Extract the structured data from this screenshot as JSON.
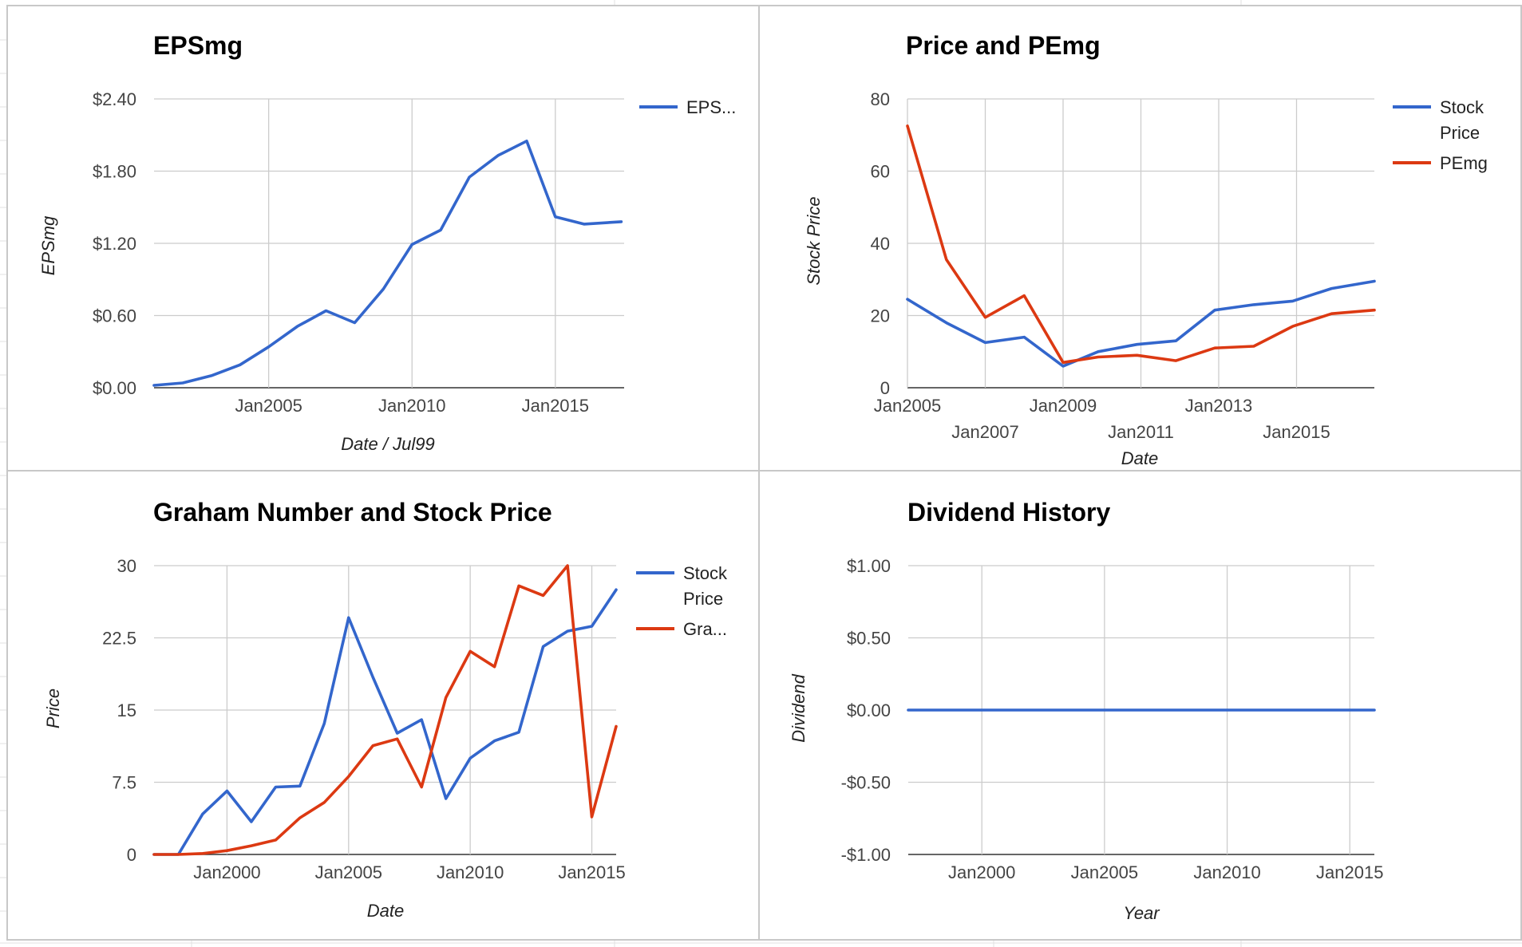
{
  "colors": {
    "blue": "#3366cc",
    "red": "#dc3912"
  },
  "chart_data": [
    {
      "type": "line",
      "title": "EPSmg",
      "xlabel": "Date / Jul99",
      "ylabel": "EPSmg",
      "xlim": [
        2001,
        2017.4
      ],
      "ylim": [
        0,
        2.4
      ],
      "yticks": [
        0,
        0.6,
        1.2,
        1.8,
        2.4
      ],
      "ytick_labels": [
        "$0.00",
        "$0.60",
        "$1.20",
        "$1.80",
        "$2.40"
      ],
      "xticks": [
        2005,
        2010,
        2015
      ],
      "xtick_labels": [
        "Jan2005",
        "Jan2010",
        "Jan2015"
      ],
      "legend": "right",
      "series": [
        {
          "name": "EPS...",
          "color": "#3366cc",
          "x": [
            2001,
            2002,
            2003,
            2004,
            2005,
            2006,
            2007,
            2008,
            2009,
            2010,
            2011,
            2012,
            2013,
            2014,
            2015,
            2016,
            2017.3
          ],
          "y": [
            0.02,
            0.04,
            0.1,
            0.19,
            0.34,
            0.51,
            0.64,
            0.54,
            0.82,
            1.19,
            1.31,
            1.75,
            1.93,
            2.05,
            1.42,
            1.36,
            1.38
          ]
        }
      ]
    },
    {
      "type": "line",
      "title": "Price and PEmg",
      "xlabel": "Date",
      "ylabel": "Stock Price",
      "xlim": [
        2005,
        2017
      ],
      "ylim": [
        0,
        80
      ],
      "yticks": [
        0,
        20,
        40,
        60,
        80
      ],
      "ytick_labels": [
        "0",
        "20",
        "40",
        "60",
        "80"
      ],
      "xticks_row1": [
        2005,
        2009,
        2013
      ],
      "xtick_labels_row1": [
        "Jan2005",
        "Jan2009",
        "Jan2013"
      ],
      "xticks_row2": [
        2007,
        2011,
        2015
      ],
      "xtick_labels_row2": [
        "Jan2007",
        "Jan2011",
        "Jan2015"
      ],
      "legend": "right",
      "series": [
        {
          "name": "Stock Price",
          "color": "#3366cc",
          "x": [
            2005,
            2006,
            2007,
            2008,
            2009,
            2009.9,
            2010.9,
            2011.9,
            2012.9,
            2013.9,
            2014.9,
            2015.9,
            2017
          ],
          "y": [
            24.5,
            18,
            12.5,
            14,
            6,
            10,
            12,
            13,
            21.5,
            23,
            24,
            27.5,
            29.5
          ]
        },
        {
          "name": "PEmg",
          "color": "#dc3912",
          "x": [
            2005,
            2006,
            2007,
            2008,
            2009,
            2009.9,
            2010.9,
            2011.9,
            2012.9,
            2013.9,
            2014.9,
            2015.9,
            2017
          ],
          "y": [
            72.5,
            35.5,
            19.5,
            25.5,
            7,
            8.5,
            9,
            7.5,
            11,
            11.5,
            17,
            20.5,
            21.5
          ]
        }
      ]
    },
    {
      "type": "line",
      "title": "Graham Number and Stock Price",
      "xlabel": "Date",
      "ylabel": "Price",
      "xlim": [
        1997,
        2016
      ],
      "ylim": [
        0,
        30
      ],
      "yticks": [
        0,
        7.5,
        15,
        22.5,
        30
      ],
      "ytick_labels": [
        "0",
        "7.5",
        "15",
        "22.5",
        "30"
      ],
      "xticks": [
        2000,
        2005,
        2010,
        2015
      ],
      "xtick_labels": [
        "Jan2000",
        "Jan2005",
        "Jan2010",
        "Jan2015"
      ],
      "legend": "right",
      "series": [
        {
          "name": "Stock Price",
          "color": "#3366cc",
          "x": [
            1997,
            1998,
            1999,
            2000,
            2001,
            2002,
            2003,
            2004,
            2005,
            2006,
            2007,
            2008,
            2009,
            2010,
            2011,
            2012,
            2013,
            2014,
            2015,
            2016
          ],
          "y": [
            0,
            0,
            4.2,
            6.6,
            3.4,
            7.0,
            7.1,
            13.6,
            24.6,
            18.4,
            12.6,
            14.0,
            5.8,
            10.0,
            11.8,
            12.7,
            21.6,
            23.2,
            23.7,
            27.5
          ]
        },
        {
          "name": "Gra...",
          "color": "#dc3912",
          "x": [
            1997,
            1998,
            1999,
            2000,
            2001,
            2002,
            2003,
            2004,
            2005,
            2006,
            2007,
            2008,
            2009,
            2010,
            2011,
            2012,
            2013,
            2014,
            2015,
            2016
          ],
          "y": [
            0,
            0,
            0.1,
            0.4,
            0.9,
            1.5,
            3.8,
            5.4,
            8.1,
            11.3,
            12.0,
            7.0,
            16.3,
            21.1,
            19.5,
            27.9,
            26.9,
            30.0,
            3.9,
            13.3
          ]
        }
      ]
    },
    {
      "type": "line",
      "title": "Dividend History",
      "xlabel": "Year",
      "ylabel": "Dividend",
      "xlim": [
        1997,
        2016
      ],
      "ylim": [
        -1,
        1
      ],
      "yticks": [
        -1,
        -0.5,
        0,
        0.5,
        1
      ],
      "ytick_labels": [
        "-$1.00",
        "-$0.50",
        "$0.00",
        "$0.50",
        "$1.00"
      ],
      "xticks": [
        2000,
        2005,
        2010,
        2015
      ],
      "xtick_labels": [
        "Jan2000",
        "Jan2005",
        "Jan2010",
        "Jan2015"
      ],
      "legend": "none",
      "series": [
        {
          "color": "#3366cc",
          "x": [
            1997,
            2016
          ],
          "y": [
            0,
            0
          ]
        }
      ]
    }
  ]
}
